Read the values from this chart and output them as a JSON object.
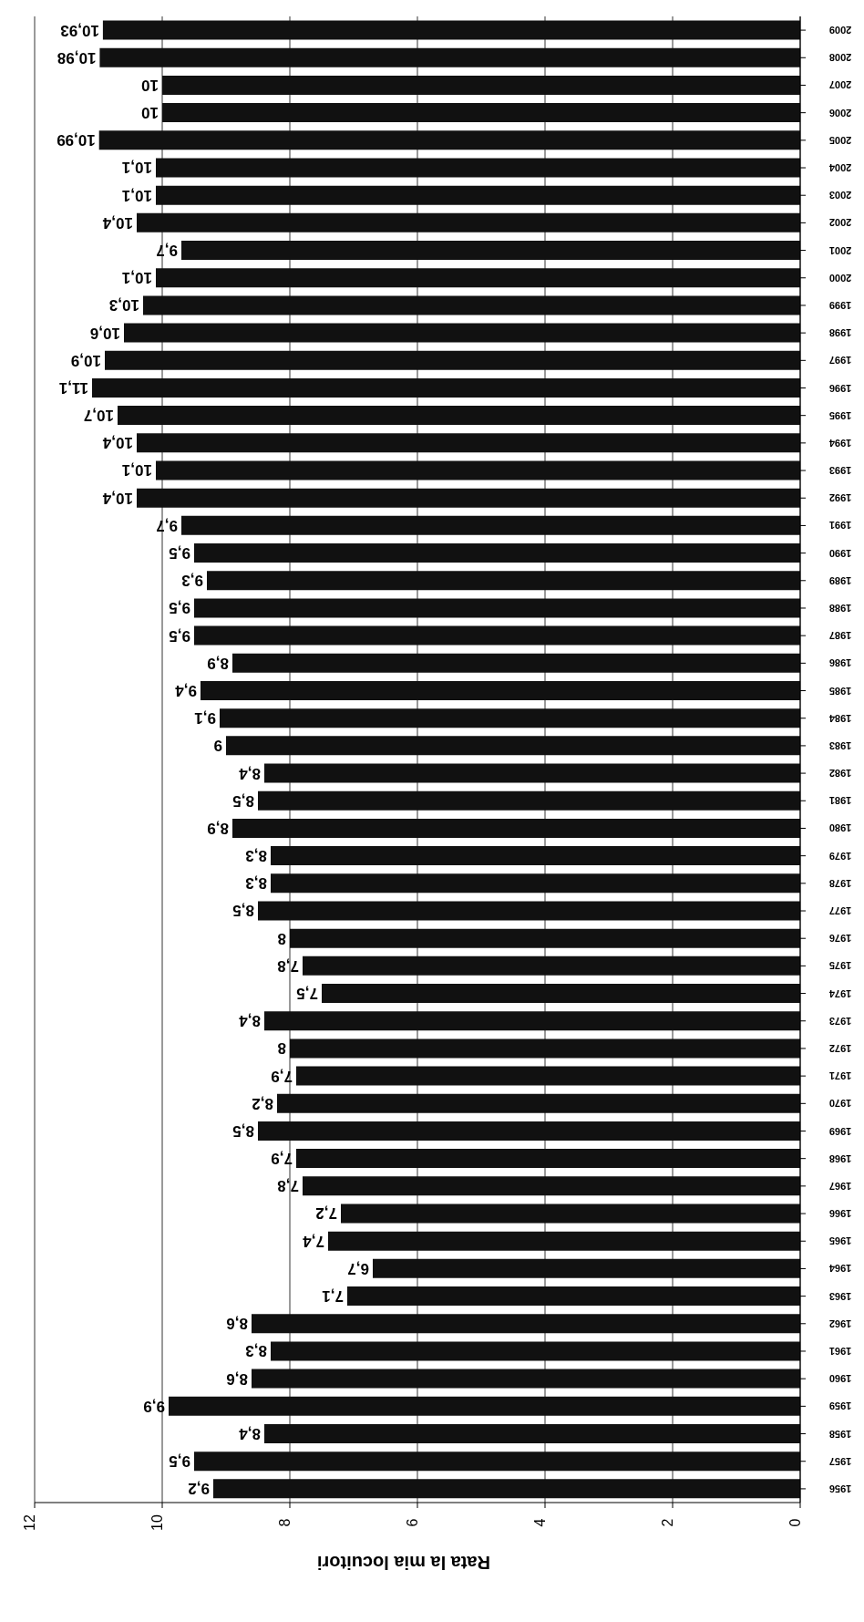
{
  "chart_data": {
    "type": "bar",
    "orientation": "horizontal",
    "xlabel": "Rata la mia locuitori",
    "categories": [
      "2009",
      "2008",
      "2007",
      "2006",
      "2005",
      "2004",
      "2003",
      "2002",
      "2001",
      "2000",
      "1999",
      "1998",
      "1997",
      "1996",
      "1995",
      "1994",
      "1993",
      "1992",
      "1991",
      "1990",
      "1989",
      "1988",
      "1987",
      "1986",
      "1985",
      "1984",
      "1983",
      "1982",
      "1981",
      "1980",
      "1979",
      "1978",
      "1977",
      "1976",
      "1975",
      "1974",
      "1973",
      "1972",
      "1971",
      "1970",
      "1969",
      "1968",
      "1967",
      "1966",
      "1965",
      "1964",
      "1963",
      "1962",
      "1961",
      "1960",
      "1959",
      "1958",
      "1957",
      "1956"
    ],
    "values": [
      10.93,
      10.98,
      10,
      10,
      10.99,
      10.1,
      10.1,
      10.4,
      9.7,
      10.1,
      10.3,
      10.6,
      10.9,
      11.1,
      10.7,
      10.4,
      10.1,
      10.4,
      9.7,
      9.5,
      9.3,
      9.5,
      9.5,
      8.9,
      9.4,
      9.1,
      9,
      8.4,
      8.5,
      8.9,
      8.3,
      8.3,
      8.5,
      8,
      7.8,
      7.5,
      8.4,
      8,
      7.9,
      8.2,
      8.5,
      7.9,
      7.8,
      7.2,
      7.4,
      6.7,
      7.1,
      8.6,
      8.3,
      8.6,
      9.9,
      8.4,
      9.5,
      9.2
    ],
    "value_labels": [
      "10,93",
      "10,98",
      "10",
      "10",
      "10,99",
      "10,1",
      "10,1",
      "10,4",
      "9,7",
      "10,1",
      "10,3",
      "10,6",
      "10,9",
      "11,1",
      "10,7",
      "10,4",
      "10,1",
      "10,4",
      "9,7",
      "9,5",
      "9,3",
      "9,5",
      "9,5",
      "8,9",
      "9,4",
      "9,1",
      "9",
      "8,4",
      "8,5",
      "8,9",
      "8,3",
      "8,3",
      "8,5",
      "8",
      "7,8",
      "7,5",
      "8,4",
      "8",
      "7,9",
      "8,2",
      "8,5",
      "7,9",
      "7,8",
      "7,2",
      "7,4",
      "6,7",
      "7,1",
      "8,6",
      "8,3",
      "8,6",
      "9,9",
      "8,4",
      "9,5",
      "9,2"
    ],
    "color": "#111111",
    "xlim": [
      12,
      0
    ],
    "xticks": [
      0,
      2,
      4,
      6,
      8,
      10,
      12
    ],
    "grid": "x"
  }
}
